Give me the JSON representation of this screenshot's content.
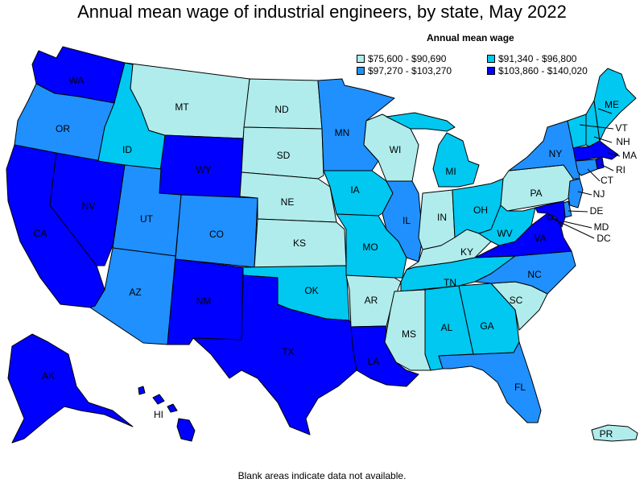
{
  "title": "Annual mean wage of industrial engineers, by state, May 2022",
  "legend": {
    "title": "Annual mean wage",
    "items": [
      {
        "label": "$75,600 - $90,690",
        "color": "#b0ecec"
      },
      {
        "label": "$91,340 - $96,800",
        "color": "#00c8f0"
      },
      {
        "label": "$97,270 - $103,270",
        "color": "#2090ff"
      },
      {
        "label": "$103,860 - $140,020",
        "color": "#0000ff"
      }
    ]
  },
  "note": "Blank areas indicate data not available.",
  "states": {
    "WA": {
      "label": "WA",
      "bin": 3
    },
    "OR": {
      "label": "OR",
      "bin": 2
    },
    "CA": {
      "label": "CA",
      "bin": 3
    },
    "NV": {
      "label": "NV",
      "bin": 3
    },
    "ID": {
      "label": "ID",
      "bin": 1
    },
    "MT": {
      "label": "MT",
      "bin": 0
    },
    "WY": {
      "label": "WY",
      "bin": 3
    },
    "UT": {
      "label": "UT",
      "bin": 2
    },
    "CO": {
      "label": "CO",
      "bin": 2
    },
    "AZ": {
      "label": "AZ",
      "bin": 2
    },
    "NM": {
      "label": "NM",
      "bin": 3
    },
    "ND": {
      "label": "ND",
      "bin": 0
    },
    "SD": {
      "label": "SD",
      "bin": 0
    },
    "NE": {
      "label": "NE",
      "bin": 0
    },
    "KS": {
      "label": "KS",
      "bin": 0
    },
    "OK": {
      "label": "OK",
      "bin": 1
    },
    "TX": {
      "label": "TX",
      "bin": 3
    },
    "MN": {
      "label": "MN",
      "bin": 2
    },
    "IA": {
      "label": "IA",
      "bin": 1
    },
    "MO": {
      "label": "MO",
      "bin": 1
    },
    "AR": {
      "label": "AR",
      "bin": 0
    },
    "LA": {
      "label": "LA",
      "bin": 3
    },
    "WI": {
      "label": "WI",
      "bin": 0
    },
    "IL": {
      "label": "IL",
      "bin": 2
    },
    "MI": {
      "label": "MI",
      "bin": 1
    },
    "IN": {
      "label": "IN",
      "bin": 0
    },
    "OH": {
      "label": "OH",
      "bin": 1
    },
    "KY": {
      "label": "KY",
      "bin": 0
    },
    "TN": {
      "label": "TN",
      "bin": 1
    },
    "MS": {
      "label": "MS",
      "bin": 0
    },
    "AL": {
      "label": "AL",
      "bin": 1
    },
    "GA": {
      "label": "GA",
      "bin": 1
    },
    "FL": {
      "label": "FL",
      "bin": 2
    },
    "SC": {
      "label": "SC",
      "bin": 0
    },
    "NC": {
      "label": "NC",
      "bin": 2
    },
    "VA": {
      "label": "VA",
      "bin": 3
    },
    "WV": {
      "label": "WV",
      "bin": 1
    },
    "PA": {
      "label": "PA",
      "bin": 0
    },
    "NY": {
      "label": "NY",
      "bin": 2
    },
    "VT": {
      "label": "VT",
      "bin": 1
    },
    "NH": {
      "label": "NH",
      "bin": 1
    },
    "ME": {
      "label": "ME",
      "bin": 1
    },
    "MA": {
      "label": "MA",
      "bin": 3
    },
    "RI": {
      "label": "RI",
      "bin": 3
    },
    "CT": {
      "label": "CT",
      "bin": 2
    },
    "NJ": {
      "label": "NJ",
      "bin": 2
    },
    "DE": {
      "label": "DE",
      "bin": 2
    },
    "MD": {
      "label": "MD",
      "bin": 3
    },
    "DC": {
      "label": "DC",
      "bin": 3
    },
    "AK": {
      "label": "AK",
      "bin": 3
    },
    "HI": {
      "label": "HI",
      "bin": 3
    },
    "PR": {
      "label": "PR",
      "bin": 0
    }
  }
}
